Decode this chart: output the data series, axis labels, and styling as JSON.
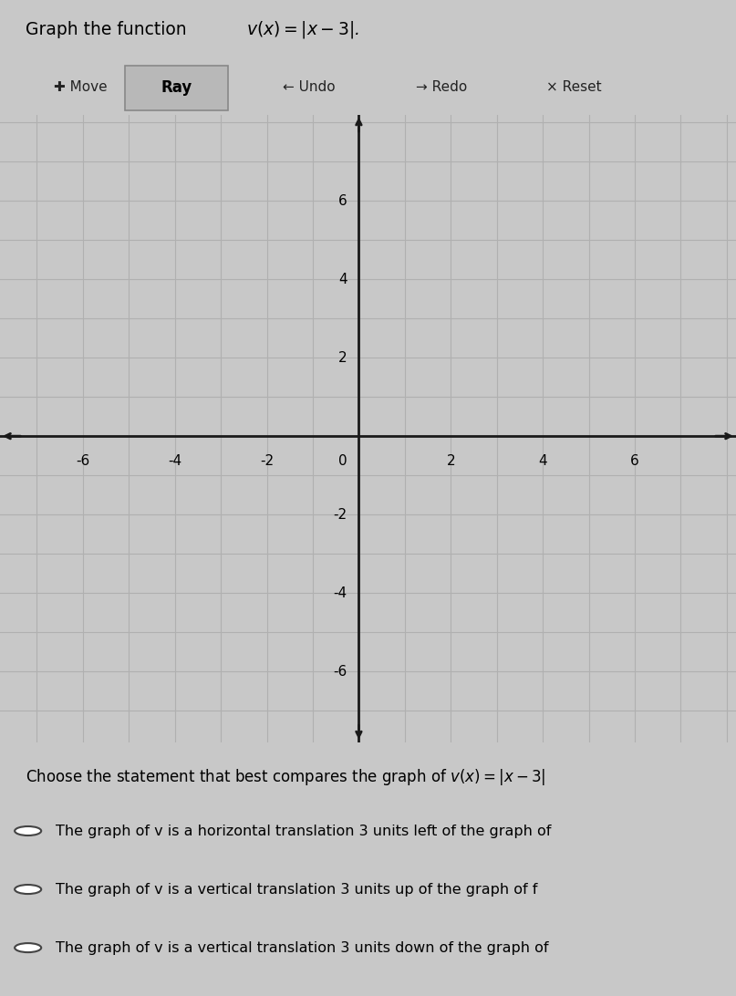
{
  "title_plain": "Graph the function ",
  "title_math": "v(x) = |x − 3|",
  "title_suffix": ".",
  "toolbar_items": [
    "✚ Move",
    "Ray",
    "← Undo",
    "→ Redo",
    "× Reset"
  ],
  "toolbar_selected_idx": 1,
  "xlim": [
    -7.8,
    8.2
  ],
  "ylim": [
    -7.8,
    8.2
  ],
  "xticks": [
    -6,
    -4,
    -2,
    0,
    2,
    4,
    6
  ],
  "yticks": [
    -6,
    -4,
    -2,
    0,
    2,
    4,
    6
  ],
  "axis_color": "#1a1a1a",
  "grid_major_color": "#b0b0b0",
  "grid_minor_color": "#c8c8c8",
  "graph_bg": "#d4d4d4",
  "toolbar_bg": "#e2e2e2",
  "toolbar_btn_bg": "#c0c0c0",
  "toolbar_btn_edge": "#999999",
  "page_bg": "#c8c8c8",
  "bottom_bg": "#d0d0d0",
  "question_text": "Choose the statement that best compares the graph of v(x) = |x − 3|",
  "choices": [
    "The graph of v is a horizontal translation 3 units left of the graph of",
    "The graph of v is a vertical translation 3 units up of the graph of f",
    "The graph of v is a vertical translation 3 units down of the graph of"
  ],
  "fig_width": 8.07,
  "fig_height": 10.92,
  "dpi": 100
}
